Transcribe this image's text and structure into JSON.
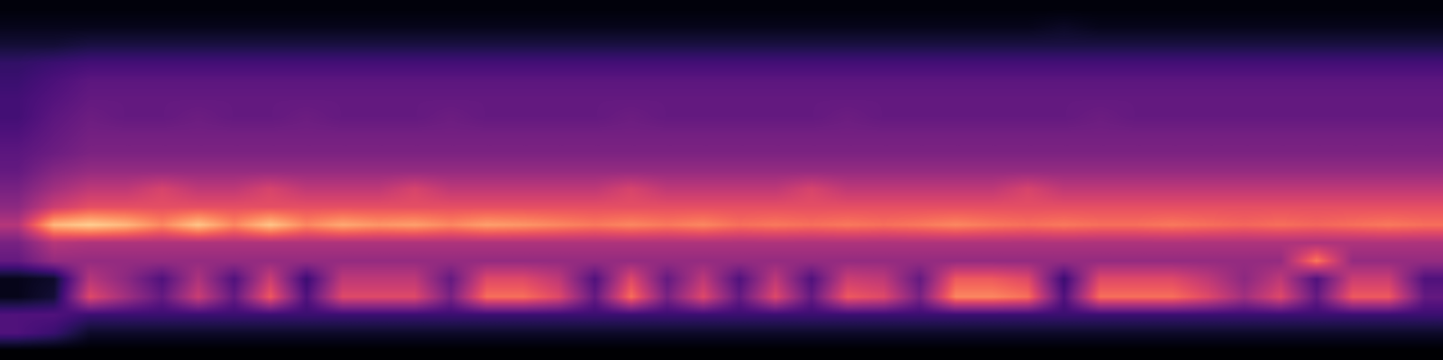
{
  "chart_data": {
    "type": "heatmap",
    "color": "magma",
    "tick_labels": false,
    "zlim": [
      0,
      1
    ],
    "cells": [
      [
        0.02,
        0.02,
        0.02,
        0.02,
        0.02,
        0.02,
        0.02,
        0.02,
        0.02,
        0.02,
        0.02,
        0.02,
        0.02,
        0.02,
        0.02,
        0.02,
        0.02,
        0.02,
        0.02,
        0.02,
        0.02,
        0.02,
        0.02,
        0.02,
        0.02,
        0.02,
        0.02,
        0.02,
        0.02,
        0.02,
        0.02,
        0.02,
        0.02,
        0.02,
        0.02,
        0.02,
        0.02,
        0.02,
        0.02,
        0.02
      ],
      [
        0.05,
        0.05,
        0.05,
        0.05,
        0.05,
        0.05,
        0.05,
        0.05,
        0.05,
        0.05,
        0.05,
        0.05,
        0.05,
        0.05,
        0.05,
        0.05,
        0.05,
        0.05,
        0.05,
        0.05,
        0.05,
        0.05,
        0.05,
        0.05,
        0.05,
        0.05,
        0.05,
        0.05,
        0.05,
        0.07,
        0.05,
        0.05,
        0.05,
        0.05,
        0.05,
        0.05,
        0.05,
        0.05,
        0.05,
        0.05
      ],
      [
        0.1,
        0.1,
        0.12,
        0.12,
        0.12,
        0.12,
        0.12,
        0.12,
        0.12,
        0.12,
        0.12,
        0.12,
        0.12,
        0.12,
        0.12,
        0.12,
        0.12,
        0.12,
        0.12,
        0.12,
        0.12,
        0.12,
        0.12,
        0.12,
        0.12,
        0.12,
        0.12,
        0.12,
        0.12,
        0.12,
        0.12,
        0.12,
        0.12,
        0.12,
        0.12,
        0.12,
        0.12,
        0.12,
        0.12,
        0.12
      ],
      [
        0.18,
        0.2,
        0.22,
        0.22,
        0.22,
        0.22,
        0.22,
        0.22,
        0.22,
        0.22,
        0.22,
        0.22,
        0.22,
        0.22,
        0.22,
        0.22,
        0.22,
        0.22,
        0.22,
        0.22,
        0.22,
        0.22,
        0.22,
        0.22,
        0.22,
        0.22,
        0.22,
        0.22,
        0.22,
        0.22,
        0.22,
        0.22,
        0.22,
        0.22,
        0.22,
        0.22,
        0.22,
        0.22,
        0.22,
        0.22
      ],
      [
        0.2,
        0.24,
        0.28,
        0.28,
        0.28,
        0.28,
        0.28,
        0.28,
        0.28,
        0.28,
        0.28,
        0.28,
        0.28,
        0.28,
        0.28,
        0.28,
        0.28,
        0.28,
        0.28,
        0.28,
        0.28,
        0.28,
        0.28,
        0.28,
        0.28,
        0.28,
        0.28,
        0.28,
        0.28,
        0.28,
        0.28,
        0.28,
        0.28,
        0.28,
        0.28,
        0.28,
        0.28,
        0.28,
        0.28,
        0.28
      ],
      [
        0.22,
        0.26,
        0.3,
        0.3,
        0.3,
        0.3,
        0.3,
        0.3,
        0.3,
        0.3,
        0.3,
        0.3,
        0.3,
        0.3,
        0.3,
        0.3,
        0.3,
        0.3,
        0.3,
        0.3,
        0.3,
        0.3,
        0.3,
        0.3,
        0.3,
        0.3,
        0.3,
        0.3,
        0.3,
        0.3,
        0.3,
        0.3,
        0.3,
        0.3,
        0.3,
        0.3,
        0.3,
        0.3,
        0.3,
        0.3
      ],
      [
        0.22,
        0.28,
        0.32,
        0.3,
        0.3,
        0.32,
        0.3,
        0.3,
        0.32,
        0.3,
        0.3,
        0.3,
        0.32,
        0.3,
        0.3,
        0.3,
        0.3,
        0.32,
        0.3,
        0.3,
        0.3,
        0.3,
        0.3,
        0.32,
        0.3,
        0.3,
        0.3,
        0.3,
        0.3,
        0.3,
        0.32,
        0.3,
        0.3,
        0.3,
        0.3,
        0.3,
        0.3,
        0.3,
        0.3,
        0.3
      ],
      [
        0.25,
        0.3,
        0.34,
        0.34,
        0.34,
        0.34,
        0.34,
        0.34,
        0.34,
        0.34,
        0.34,
        0.34,
        0.34,
        0.34,
        0.34,
        0.34,
        0.34,
        0.34,
        0.34,
        0.34,
        0.34,
        0.34,
        0.34,
        0.34,
        0.34,
        0.34,
        0.34,
        0.34,
        0.34,
        0.34,
        0.34,
        0.34,
        0.34,
        0.34,
        0.34,
        0.34,
        0.34,
        0.34,
        0.34,
        0.34
      ],
      [
        0.28,
        0.32,
        0.36,
        0.36,
        0.36,
        0.36,
        0.36,
        0.36,
        0.36,
        0.36,
        0.36,
        0.36,
        0.36,
        0.36,
        0.36,
        0.36,
        0.36,
        0.36,
        0.36,
        0.36,
        0.36,
        0.36,
        0.36,
        0.36,
        0.36,
        0.36,
        0.36,
        0.36,
        0.36,
        0.36,
        0.36,
        0.36,
        0.36,
        0.36,
        0.36,
        0.36,
        0.36,
        0.36,
        0.36,
        0.36
      ],
      [
        0.3,
        0.38,
        0.42,
        0.42,
        0.42,
        0.42,
        0.42,
        0.42,
        0.42,
        0.42,
        0.42,
        0.42,
        0.42,
        0.42,
        0.42,
        0.42,
        0.42,
        0.42,
        0.42,
        0.42,
        0.42,
        0.42,
        0.42,
        0.42,
        0.42,
        0.42,
        0.42,
        0.42,
        0.42,
        0.42,
        0.42,
        0.42,
        0.42,
        0.42,
        0.42,
        0.42,
        0.42,
        0.42,
        0.42,
        0.42
      ],
      [
        0.35,
        0.45,
        0.52,
        0.52,
        0.58,
        0.52,
        0.52,
        0.58,
        0.52,
        0.52,
        0.52,
        0.58,
        0.52,
        0.52,
        0.52,
        0.52,
        0.52,
        0.58,
        0.52,
        0.52,
        0.52,
        0.52,
        0.58,
        0.52,
        0.52,
        0.52,
        0.52,
        0.52,
        0.58,
        0.52,
        0.52,
        0.52,
        0.52,
        0.52,
        0.52,
        0.52,
        0.52,
        0.52,
        0.52,
        0.52
      ],
      [
        0.4,
        0.55,
        0.62,
        0.62,
        0.62,
        0.62,
        0.62,
        0.62,
        0.62,
        0.62,
        0.62,
        0.62,
        0.62,
        0.62,
        0.62,
        0.62,
        0.62,
        0.62,
        0.62,
        0.62,
        0.62,
        0.62,
        0.62,
        0.62,
        0.62,
        0.62,
        0.62,
        0.62,
        0.62,
        0.62,
        0.62,
        0.62,
        0.62,
        0.62,
        0.62,
        0.62,
        0.62,
        0.62,
        0.62,
        0.62
      ],
      [
        0.5,
        0.85,
        0.9,
        0.85,
        0.75,
        0.88,
        0.75,
        0.88,
        0.75,
        0.82,
        0.78,
        0.8,
        0.75,
        0.8,
        0.78,
        0.75,
        0.72,
        0.75,
        0.72,
        0.75,
        0.7,
        0.72,
        0.7,
        0.72,
        0.7,
        0.72,
        0.75,
        0.72,
        0.7,
        0.72,
        0.7,
        0.7,
        0.72,
        0.7,
        0.68,
        0.7,
        0.68,
        0.7,
        0.72,
        0.7
      ],
      [
        0.35,
        0.5,
        0.48,
        0.48,
        0.48,
        0.48,
        0.48,
        0.48,
        0.48,
        0.48,
        0.48,
        0.48,
        0.48,
        0.48,
        0.48,
        0.48,
        0.48,
        0.48,
        0.48,
        0.48,
        0.48,
        0.48,
        0.48,
        0.48,
        0.48,
        0.48,
        0.48,
        0.48,
        0.48,
        0.48,
        0.48,
        0.48,
        0.48,
        0.48,
        0.48,
        0.48,
        0.48,
        0.48,
        0.48,
        0.48
      ],
      [
        0.3,
        0.42,
        0.42,
        0.42,
        0.42,
        0.42,
        0.42,
        0.42,
        0.42,
        0.42,
        0.42,
        0.42,
        0.42,
        0.42,
        0.42,
        0.42,
        0.42,
        0.42,
        0.42,
        0.42,
        0.42,
        0.42,
        0.42,
        0.42,
        0.42,
        0.42,
        0.42,
        0.42,
        0.42,
        0.42,
        0.42,
        0.42,
        0.42,
        0.42,
        0.42,
        0.42,
        0.72,
        0.42,
        0.42,
        0.42
      ],
      [
        0.05,
        0.08,
        0.5,
        0.4,
        0.25,
        0.48,
        0.25,
        0.55,
        0.2,
        0.52,
        0.52,
        0.52,
        0.3,
        0.6,
        0.6,
        0.52,
        0.25,
        0.6,
        0.3,
        0.52,
        0.25,
        0.52,
        0.25,
        0.55,
        0.52,
        0.3,
        0.65,
        0.65,
        0.6,
        0.2,
        0.6,
        0.6,
        0.6,
        0.52,
        0.4,
        0.52,
        0.25,
        0.55,
        0.55,
        0.25
      ],
      [
        0.05,
        0.1,
        0.6,
        0.45,
        0.3,
        0.55,
        0.3,
        0.65,
        0.25,
        0.6,
        0.6,
        0.6,
        0.35,
        0.7,
        0.7,
        0.6,
        0.3,
        0.7,
        0.35,
        0.6,
        0.3,
        0.6,
        0.3,
        0.65,
        0.6,
        0.35,
        0.75,
        0.75,
        0.7,
        0.25,
        0.7,
        0.7,
        0.7,
        0.6,
        0.45,
        0.6,
        0.3,
        0.65,
        0.65,
        0.3
      ],
      [
        0.25,
        0.25,
        0.2,
        0.2,
        0.2,
        0.2,
        0.2,
        0.2,
        0.2,
        0.2,
        0.2,
        0.2,
        0.2,
        0.2,
        0.2,
        0.2,
        0.2,
        0.2,
        0.2,
        0.2,
        0.2,
        0.2,
        0.2,
        0.2,
        0.2,
        0.2,
        0.2,
        0.2,
        0.2,
        0.2,
        0.2,
        0.2,
        0.2,
        0.2,
        0.2,
        0.2,
        0.2,
        0.2,
        0.2,
        0.2
      ],
      [
        0.25,
        0.2,
        0.08,
        0.08,
        0.08,
        0.08,
        0.08,
        0.08,
        0.08,
        0.08,
        0.08,
        0.08,
        0.08,
        0.08,
        0.08,
        0.08,
        0.08,
        0.08,
        0.08,
        0.08,
        0.08,
        0.08,
        0.08,
        0.08,
        0.08,
        0.08,
        0.08,
        0.08,
        0.08,
        0.08,
        0.08,
        0.08,
        0.08,
        0.08,
        0.08,
        0.08,
        0.08,
        0.08,
        0.08,
        0.08
      ],
      [
        0.0,
        0.0,
        0.0,
        0.0,
        0.0,
        0.0,
        0.0,
        0.0,
        0.0,
        0.0,
        0.0,
        0.0,
        0.0,
        0.0,
        0.0,
        0.0,
        0.0,
        0.0,
        0.0,
        0.0,
        0.0,
        0.0,
        0.0,
        0.0,
        0.0,
        0.0,
        0.0,
        0.0,
        0.0,
        0.0,
        0.0,
        0.0,
        0.0,
        0.0,
        0.0,
        0.0,
        0.0,
        0.0,
        0.0,
        0.0
      ]
    ]
  }
}
